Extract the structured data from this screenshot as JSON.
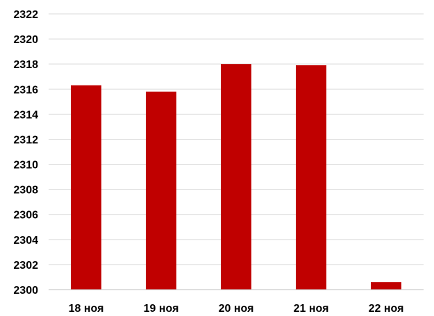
{
  "chart_data": {
    "type": "bar",
    "categories": [
      "18 ноя",
      "19 ноя",
      "20 ноя",
      "21 ноя",
      "22 ноя"
    ],
    "values": [
      2316.3,
      2315.8,
      2318.0,
      2317.9,
      2300.6
    ],
    "title": "",
    "xlabel": "",
    "ylabel": "",
    "ylim": [
      2300,
      2322
    ],
    "yticks": [
      2300,
      2302,
      2304,
      2306,
      2308,
      2310,
      2312,
      2314,
      2316,
      2318,
      2320,
      2322
    ],
    "grid": true,
    "legend": "none",
    "bar_color": "#C00000",
    "grid_color": "#D9D9D9",
    "axis_color": "#BFBFBF"
  }
}
